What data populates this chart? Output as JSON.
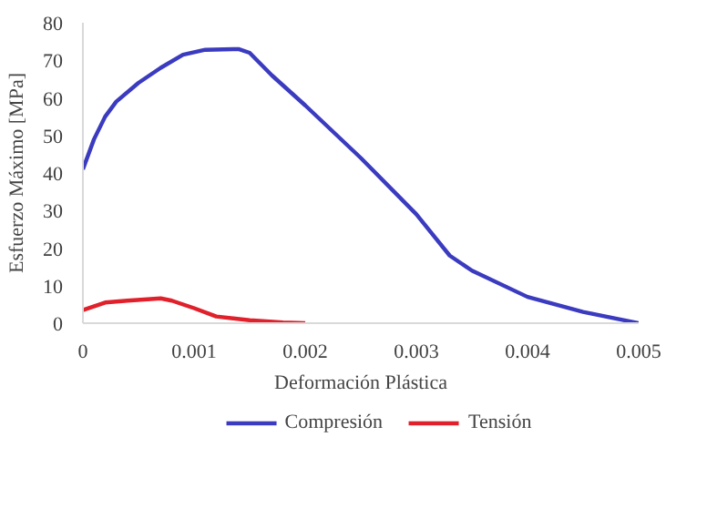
{
  "chart_data": {
    "type": "line",
    "xlabel": "Deformación Plástica",
    "ylabel": "Esfuerzo Máximo [MPa]",
    "xlim": [
      0,
      0.005
    ],
    "xticks": [
      0,
      0.001,
      0.002,
      0.003,
      0.004,
      0.005
    ],
    "ylim": [
      0,
      80
    ],
    "yticks": [
      0,
      10,
      20,
      30,
      40,
      50,
      60,
      70,
      80
    ],
    "grid": false,
    "legend": "bottom",
    "series": [
      {
        "name": "Compresión",
        "color": "#3b3bc0",
        "x": [
          0,
          0.0001,
          0.0002,
          0.0003,
          0.0005,
          0.0007,
          0.0009,
          0.0011,
          0.0014,
          0.0015,
          0.0017,
          0.002,
          0.0025,
          0.003,
          0.0033,
          0.0035,
          0.004,
          0.0045,
          0.005
        ],
        "values": [
          41,
          49,
          55,
          59,
          64,
          68,
          71.5,
          72.8,
          73,
          72,
          66,
          58,
          44,
          29,
          18,
          14,
          7,
          3,
          0
        ]
      },
      {
        "name": "Tensión",
        "color": "#e0202a",
        "x": [
          0,
          0.0002,
          0.0004,
          0.0007,
          0.0008,
          0.001,
          0.0012,
          0.0015,
          0.0018,
          0.002
        ],
        "values": [
          3.5,
          5.5,
          6,
          6.6,
          6,
          4,
          1.8,
          0.8,
          0.2,
          0
        ]
      }
    ]
  }
}
